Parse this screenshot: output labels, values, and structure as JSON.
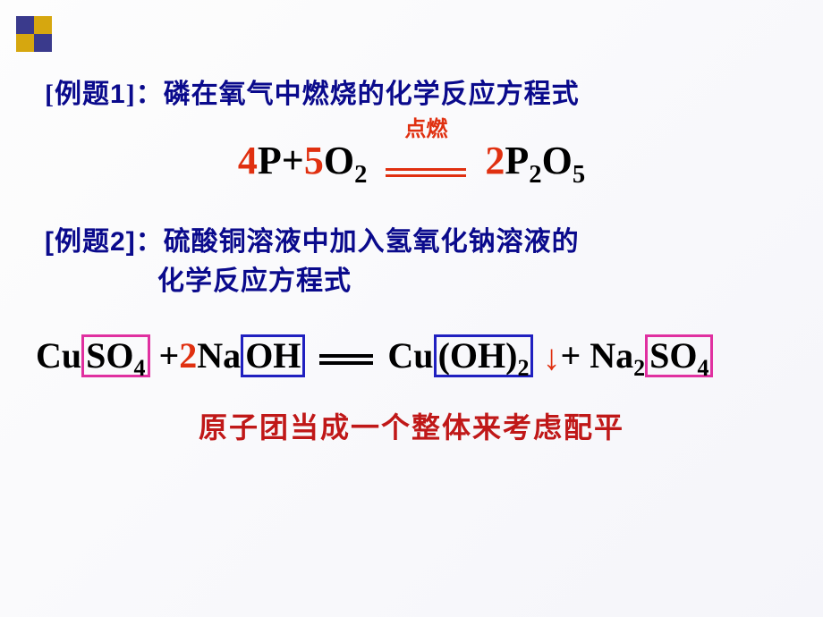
{
  "decoration": {
    "colors": {
      "navy": "#3a3a8c",
      "gold": "#d6a70f"
    }
  },
  "example1": {
    "label_open": "[例题",
    "label_num": "1",
    "label_close": "]：",
    "title": "磷在氧气中燃烧的化学反应方程式",
    "title_color": "#0a0a8c",
    "equation": {
      "coef1": "4",
      "r1": "P",
      "plus": "+",
      "coef2": "5",
      "r2_base": "O",
      "r2_sub": "2",
      "condition": "点燃",
      "coef3": "2",
      "p_base1": "P",
      "p_sub1": "2",
      "p_base2": "O",
      "p_sub2": "5",
      "coef_color": "#e03010",
      "condition_color": "#e03010",
      "line_color": "#e03010"
    }
  },
  "example2": {
    "label_open": "[例题",
    "label_num": "2",
    "label_close": "]：",
    "title_line1": "硫酸铜溶液中加入氢氧化钠溶液的",
    "title_line2": "化学反应方程式",
    "title_color": "#0a0a8c",
    "equation": {
      "t1": "Cu",
      "box1": {
        "base": "SO",
        "sub": "4",
        "border_color": "#e030a0"
      },
      "t2": " +",
      "coef": "2",
      "t3": "Na",
      "box2": {
        "text": "OH",
        "border_color": "#2020c0"
      },
      "t4": "Cu",
      "box3": {
        "base": "(OH)",
        "sub": "2",
        "border_color": "#2020c0"
      },
      "arrow": "↓",
      "t5": "+  Na",
      "na_sub": "2",
      "box4": {
        "base": "SO",
        "sub": "4",
        "border_color": "#e030a0"
      },
      "coef_color": "#e03010",
      "arrow_color": "#e03010",
      "equals_color": "#000000"
    }
  },
  "footnote": {
    "text": "原子团当成一个整体来考虑配平",
    "color": "#c01818"
  }
}
